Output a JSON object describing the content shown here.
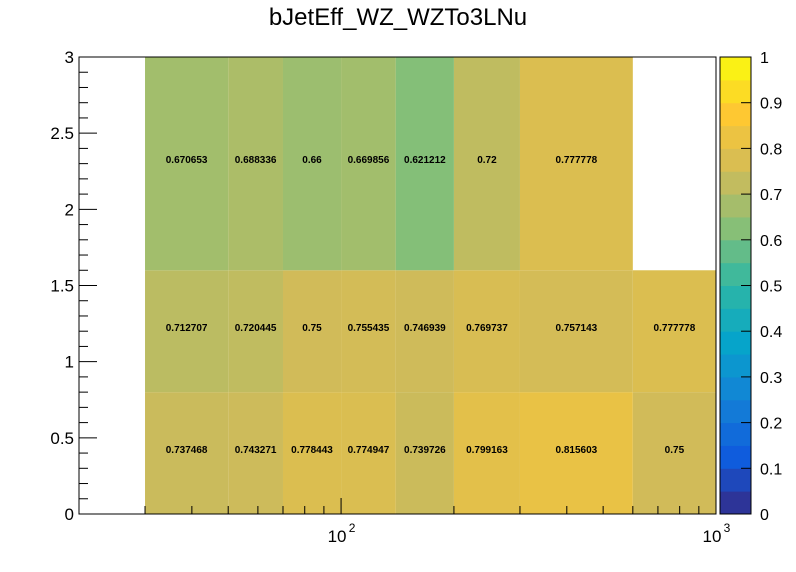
{
  "chart_data": {
    "type": "heatmap",
    "title": "bJetEff_WZ_WZTo3LNu",
    "xlabel": "",
    "ylabel": "",
    "x_scale": "log",
    "xlim": [
      20,
      1000
    ],
    "ylim": [
      0,
      3
    ],
    "x_edges": [
      30,
      50,
      70,
      100,
      140,
      200,
      300,
      600,
      1000
    ],
    "y_edges": [
      0,
      0.8,
      1.6,
      3
    ],
    "x_ticks": [
      {
        "value": 100,
        "label": "10",
        "exp": "2"
      },
      {
        "value": 1000,
        "label": "10",
        "exp": "3"
      }
    ],
    "y_ticks": [
      {
        "value": 0,
        "label": "0"
      },
      {
        "value": 0.5,
        "label": "0.5"
      },
      {
        "value": 1,
        "label": "1"
      },
      {
        "value": 1.5,
        "label": "1.5"
      },
      {
        "value": 2,
        "label": "2"
      },
      {
        "value": 2.5,
        "label": "2.5"
      },
      {
        "value": 3,
        "label": "3"
      }
    ],
    "cells": [
      [
        {
          "value": 0.737468,
          "label": "0.737468"
        },
        {
          "value": 0.743271,
          "label": "0.743271"
        },
        {
          "value": 0.778443,
          "label": "0.778443"
        },
        {
          "value": 0.774947,
          "label": "0.774947"
        },
        {
          "value": 0.739726,
          "label": "0.739726"
        },
        {
          "value": 0.799163,
          "label": "0.799163"
        },
        {
          "value": 0.815603,
          "label": "0.815603"
        },
        {
          "value": 0.75,
          "label": "0.75"
        }
      ],
      [
        {
          "value": 0.712707,
          "label": "0.712707"
        },
        {
          "value": 0.720445,
          "label": "0.720445"
        },
        {
          "value": 0.75,
          "label": "0.75"
        },
        {
          "value": 0.755435,
          "label": "0.755435"
        },
        {
          "value": 0.746939,
          "label": "0.746939"
        },
        {
          "value": 0.769737,
          "label": "0.769737"
        },
        {
          "value": 0.757143,
          "label": "0.757143"
        },
        {
          "value": 0.777778,
          "label": "0.777778"
        }
      ],
      [
        {
          "value": 0.670653,
          "label": "0.670653"
        },
        {
          "value": 0.688336,
          "label": "0.688336"
        },
        {
          "value": 0.66,
          "label": "0.66"
        },
        {
          "value": 0.669856,
          "label": "0.669856"
        },
        {
          "value": 0.621212,
          "label": "0.621212"
        },
        {
          "value": 0.72,
          "label": "0.72"
        },
        {
          "value": 0.777778,
          "label": "0.777778"
        },
        null
      ]
    ],
    "zlim": [
      0,
      1
    ],
    "colorbar_ticks": [
      "0",
      "0.1",
      "0.2",
      "0.3",
      "0.4",
      "0.5",
      "0.6",
      "0.7",
      "0.8",
      "0.9",
      "1"
    ],
    "palette": [
      "#352a87",
      "#0f5cdd",
      "#1481d6",
      "#06a4ca",
      "#2eb7a4",
      "#87bf77",
      "#d1bb59",
      "#fec832",
      "#f9fb0e"
    ],
    "grid": false,
    "legend": "colorbar-right"
  }
}
